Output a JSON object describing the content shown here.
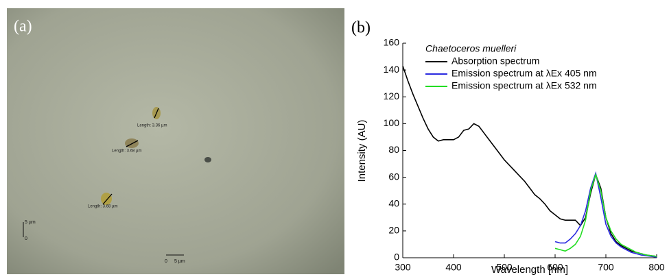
{
  "panel_a": {
    "label": "(a)",
    "measurements": [
      "Length:  3.36 µm",
      "Length:  3.68 µm",
      "Length:  3.68 µm"
    ],
    "scale_y": [
      "5 µm",
      "0"
    ],
    "scale_x": [
      "0",
      "5 µm"
    ]
  },
  "chart_data": {
    "type": "line",
    "panel_label": "(b)",
    "legend_title": "Chaetoceros muelleri",
    "x_label": "Wavelength [nm]",
    "y_label": "Intensity (AU)",
    "xlim": [
      300,
      800
    ],
    "xticks": [
      300,
      400,
      500,
      600,
      700,
      800
    ],
    "ylim": [
      0,
      160
    ],
    "yticks": [
      0,
      20,
      40,
      60,
      80,
      100,
      120,
      140,
      160
    ],
    "x": [
      300,
      310,
      320,
      330,
      340,
      350,
      360,
      370,
      380,
      390,
      400,
      410,
      420,
      430,
      440,
      450,
      460,
      470,
      480,
      490,
      500,
      510,
      520,
      530,
      540,
      550,
      560,
      570,
      580,
      590,
      600,
      610,
      620,
      630,
      640,
      650,
      660,
      670,
      680,
      690,
      700,
      710,
      720,
      730,
      740,
      750,
      760,
      770,
      780,
      790,
      800
    ],
    "series": [
      {
        "name": "Absorption spectrum",
        "color": "#000000",
        "values": [
          143,
          132,
          122,
          113,
          104,
          96,
          90,
          87,
          88,
          88,
          88,
          90,
          95,
          96,
          100,
          98,
          93,
          88,
          83,
          78,
          73,
          69,
          65,
          61,
          57,
          52,
          47,
          44,
          40,
          35,
          32,
          29,
          28,
          28,
          28,
          24,
          30,
          48,
          62,
          52,
          30,
          18,
          12,
          9,
          7,
          5,
          4,
          3,
          2,
          1.5,
          1
        ]
      },
      {
        "name": "Emission spectrum at λEx 405 nm",
        "color": "#2a2ae0",
        "values": [
          null,
          null,
          null,
          null,
          null,
          null,
          null,
          null,
          null,
          null,
          null,
          null,
          null,
          null,
          null,
          null,
          null,
          null,
          null,
          null,
          null,
          null,
          null,
          null,
          null,
          null,
          null,
          null,
          null,
          null,
          12,
          11,
          11,
          14,
          18,
          24,
          35,
          52,
          63,
          45,
          25,
          16,
          11,
          8,
          6,
          4,
          3,
          2,
          1.5,
          1,
          0.5
        ]
      },
      {
        "name": "Emission spectrum at λEx 532 nm",
        "color": "#22dd22",
        "values": [
          null,
          null,
          null,
          null,
          null,
          null,
          null,
          null,
          null,
          null,
          null,
          null,
          null,
          null,
          null,
          null,
          null,
          null,
          null,
          null,
          null,
          null,
          null,
          null,
          null,
          null,
          null,
          null,
          null,
          null,
          7,
          6,
          5,
          7,
          10,
          16,
          28,
          50,
          62,
          50,
          30,
          20,
          14,
          10,
          8,
          6,
          4,
          3,
          2,
          1.5,
          1
        ]
      }
    ]
  }
}
